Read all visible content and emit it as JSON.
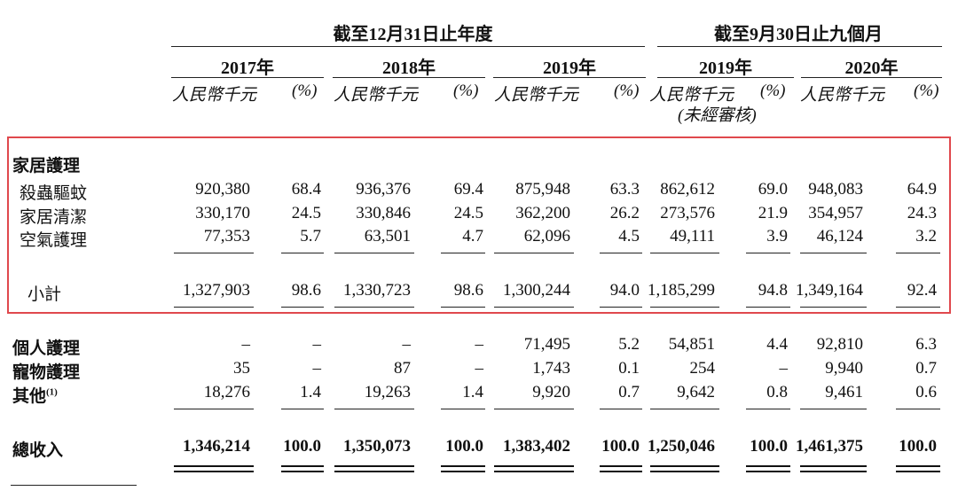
{
  "header": {
    "group_annual": "截至12月31日止年度",
    "group_nine_month": "截至9月30日止九個月"
  },
  "years": [
    "2017年",
    "2018年",
    "2019年",
    "2019年",
    "2020年"
  ],
  "units": {
    "rmb": "人民幣千元",
    "pct": "(%)",
    "unaudited": "(未經審核)"
  },
  "section": {
    "home_care": "家居護理"
  },
  "rows": [
    {
      "label": "殺蟲驅蚊",
      "values": [
        "920,380",
        "68.4",
        "936,376",
        "69.4",
        "875,948",
        "63.3",
        "862,612",
        "69.0",
        "948,083",
        "64.9"
      ]
    },
    {
      "label": "家居清潔",
      "values": [
        "330,170",
        "24.5",
        "330,846",
        "24.5",
        "362,200",
        "26.2",
        "273,576",
        "21.9",
        "354,957",
        "24.3"
      ]
    },
    {
      "label": "空氣護理",
      "values": [
        "77,353",
        "5.7",
        "63,501",
        "4.7",
        "62,096",
        "4.5",
        "49,111",
        "3.9",
        "46,124",
        "3.2"
      ]
    },
    {
      "label": "小計",
      "values": [
        "1,327,903",
        "98.6",
        "1,330,723",
        "98.6",
        "1,300,244",
        "94.0",
        "1,185,299",
        "94.8",
        "1,349,164",
        "92.4"
      ]
    },
    {
      "label": "個人護理",
      "values": [
        "–",
        "–",
        "–",
        "–",
        "71,495",
        "5.2",
        "54,851",
        "4.4",
        "92,810",
        "6.3"
      ]
    },
    {
      "label": "寵物護理",
      "values": [
        "35",
        "–",
        "87",
        "–",
        "1,743",
        "0.1",
        "254",
        "–",
        "9,940",
        "0.7"
      ]
    },
    {
      "label": "其他",
      "footnote": "(1)",
      "values": [
        "18,276",
        "1.4",
        "19,263",
        "1.4",
        "9,920",
        "0.7",
        "9,642",
        "0.8",
        "9,461",
        "0.6"
      ]
    },
    {
      "label": "總收入",
      "values": [
        "1,346,214",
        "100.0",
        "1,350,073",
        "100.0",
        "1,383,402",
        "100.0",
        "1,250,046",
        "100.0",
        "1,461,375",
        "100.0"
      ]
    }
  ]
}
